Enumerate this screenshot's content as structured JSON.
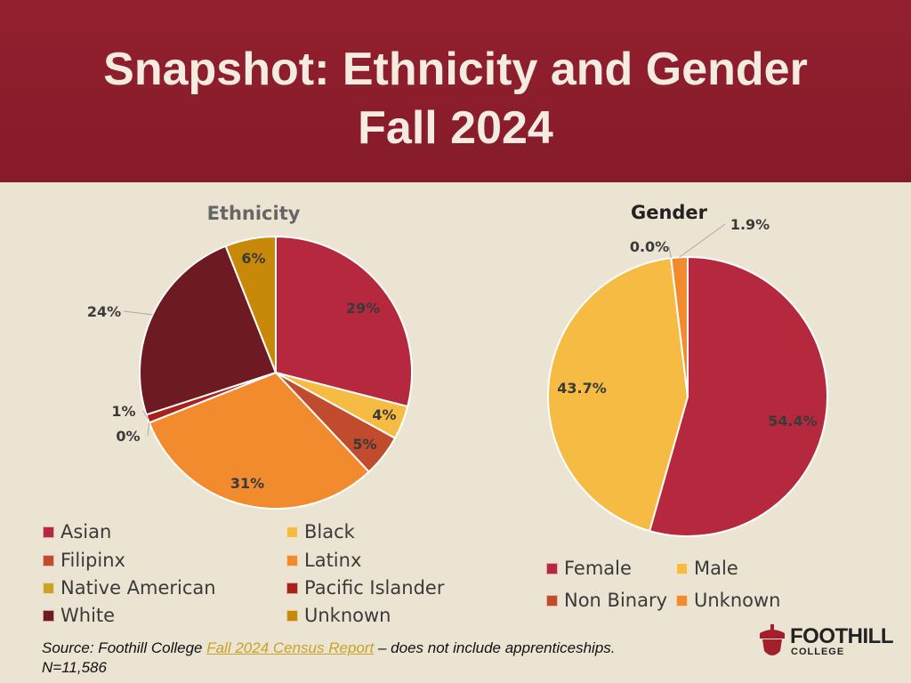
{
  "header": {
    "title_line1": "Snapshot: Ethnicity and Gender",
    "title_line2": "Fall 2024"
  },
  "colors": {
    "header_bg": "#8c1d2c",
    "title_text": "#f4ece0",
    "background": "#ece4d3",
    "link": "#c9a227"
  },
  "chart_data": [
    {
      "type": "pie",
      "title": "Ethnicity",
      "categories": [
        "Asian",
        "Black",
        "Filipinx",
        "Latinx",
        "Native American",
        "Pacific Islander",
        "White",
        "Unknown"
      ],
      "values": [
        29,
        4,
        5,
        31,
        0,
        1,
        24,
        6
      ],
      "data_labels": [
        "29%",
        "4%",
        "5%",
        "31%",
        "0%",
        "1%",
        "24%",
        "6%"
      ],
      "colors": [
        "#b5283d",
        "#f6bb43",
        "#c04b2d",
        "#f28a2e",
        "#cca329",
        "#a8221a",
        "#6e1a23",
        "#c98908"
      ],
      "legend": "bottom"
    },
    {
      "type": "pie",
      "title": "Gender",
      "categories": [
        "Female",
        "Male",
        "Non Binary",
        "Unknown"
      ],
      "values": [
        54.4,
        43.7,
        0.0,
        1.9
      ],
      "data_labels": [
        "54.4%",
        "43.7%",
        "0.0%",
        "1.9%"
      ],
      "colors": [
        "#b5283d",
        "#f6bb43",
        "#c04b2d",
        "#f28a2e"
      ],
      "legend": "bottom"
    }
  ],
  "footer": {
    "source_prefix": "Source: Foothill College ",
    "source_link": "Fall 2024 Census Report",
    "source_suffix": " – does not include apprenticeships.",
    "n_line": "N=11,586"
  },
  "logo": {
    "name": "FOOTHILL",
    "sub": "COLLEGE",
    "icon": "acorn-icon"
  }
}
